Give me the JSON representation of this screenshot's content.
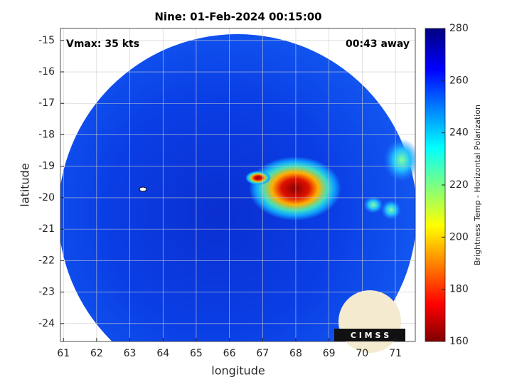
{
  "chart_data": {
    "type": "image",
    "title": "Nine: 01-Feb-2024 00:15:00",
    "xlabel": "longitude",
    "ylabel": "latitude",
    "xlim": [
      60.91,
      71.6
    ],
    "ylim": [
      -24.57,
      -14.62
    ],
    "xticks": [
      61,
      62,
      63,
      64,
      65,
      66,
      67,
      68,
      69,
      70,
      71
    ],
    "yticks": [
      -15,
      -16,
      -17,
      -18,
      -19,
      -20,
      -21,
      -22,
      -23,
      -24
    ],
    "grid": true,
    "annotations": [
      "Vmax: 35 kts",
      "00:43 away"
    ],
    "colorbar": {
      "label": "Brightness Temp - Horizontal Polarization",
      "lim": [
        160,
        280
      ],
      "ticks": [
        160,
        180,
        200,
        220,
        240,
        260,
        280
      ]
    },
    "logo": "C I M S S"
  }
}
